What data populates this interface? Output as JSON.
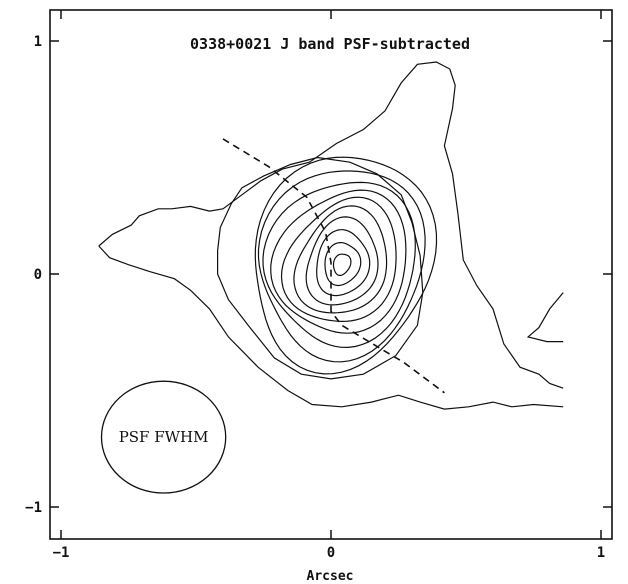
{
  "chart_data": {
    "type": "contour",
    "title": "0338+0021 J band PSF-subtracted",
    "xlabel": "Arcsec",
    "ylabel": "",
    "xlim": [
      -1,
      1
    ],
    "ylim": [
      -1.15,
      1.15
    ],
    "x_ticks": [
      {
        "value": -1,
        "label": "−1"
      },
      {
        "value": 0,
        "label": "0"
      },
      {
        "value": 1,
        "label": "1"
      }
    ],
    "y_ticks": [
      {
        "value": 1,
        "label": "1"
      },
      {
        "value": 0,
        "label": "0"
      },
      {
        "value": -1,
        "label": "−1"
      }
    ],
    "grid": false,
    "inner_contours": {
      "count": 10,
      "center": [
        0.04,
        0.04
      ],
      "rx_range": [
        0.03,
        0.34
      ],
      "ry_range": [
        0.05,
        0.47
      ],
      "rotation_deg": -12
    },
    "outer_contours": [
      [
        [
          -0.86,
          0.12
        ],
        [
          -0.81,
          0.17
        ],
        [
          -0.74,
          0.21
        ],
        [
          -0.71,
          0.25
        ],
        [
          -0.64,
          0.28
        ],
        [
          -0.59,
          0.28
        ],
        [
          -0.52,
          0.29
        ],
        [
          -0.45,
          0.27
        ],
        [
          -0.4,
          0.28
        ],
        [
          -0.33,
          0.34
        ],
        [
          -0.26,
          0.4
        ],
        [
          -0.18,
          0.45
        ],
        [
          -0.08,
          0.48
        ],
        [
          0.02,
          0.56
        ],
        [
          0.12,
          0.62
        ],
        [
          0.2,
          0.7
        ],
        [
          0.26,
          0.82
        ],
        [
          0.32,
          0.9
        ],
        [
          0.39,
          0.91
        ],
        [
          0.44,
          0.88
        ],
        [
          0.46,
          0.81
        ],
        [
          0.45,
          0.71
        ],
        [
          0.42,
          0.55
        ],
        [
          0.45,
          0.43
        ],
        [
          0.47,
          0.26
        ],
        [
          0.49,
          0.06
        ],
        [
          0.54,
          -0.05
        ],
        [
          0.6,
          -0.15
        ],
        [
          0.64,
          -0.3
        ],
        [
          0.7,
          -0.4
        ],
        [
          0.77,
          -0.43
        ],
        [
          0.81,
          -0.47
        ],
        [
          0.86,
          -0.49
        ]
      ],
      [
        [
          -0.86,
          0.12
        ],
        [
          -0.82,
          0.07
        ],
        [
          -0.75,
          0.04
        ],
        [
          -0.67,
          0.01
        ],
        [
          -0.58,
          -0.02
        ],
        [
          -0.52,
          -0.07
        ],
        [
          -0.45,
          -0.15
        ],
        [
          -0.38,
          -0.27
        ],
        [
          -0.27,
          -0.4
        ],
        [
          -0.16,
          -0.5
        ],
        [
          -0.07,
          -0.56
        ],
        [
          0.04,
          -0.57
        ],
        [
          0.15,
          -0.55
        ],
        [
          0.25,
          -0.52
        ],
        [
          0.33,
          -0.55
        ],
        [
          0.42,
          -0.58
        ],
        [
          0.51,
          -0.57
        ],
        [
          0.6,
          -0.55
        ],
        [
          0.67,
          -0.57
        ],
        [
          0.75,
          -0.56
        ],
        [
          0.86,
          -0.57
        ]
      ],
      [
        [
          0.86,
          -0.08
        ],
        [
          0.81,
          -0.15
        ],
        [
          0.77,
          -0.23
        ],
        [
          0.73,
          -0.27
        ],
        [
          0.8,
          -0.29
        ],
        [
          0.86,
          -0.29
        ]
      ]
    ],
    "second_contour": [
      [
        -0.37,
        0.3
      ],
      [
        -0.41,
        0.2
      ],
      [
        -0.42,
        0.1
      ],
      [
        -0.42,
        0.0
      ],
      [
        -0.38,
        -0.11
      ],
      [
        -0.3,
        -0.23
      ],
      [
        -0.21,
        -0.36
      ],
      [
        -0.11,
        -0.43
      ],
      [
        0.0,
        -0.45
      ],
      [
        0.12,
        -0.43
      ],
      [
        0.24,
        -0.35
      ],
      [
        0.32,
        -0.22
      ],
      [
        0.34,
        -0.08
      ],
      [
        0.33,
        0.08
      ],
      [
        0.3,
        0.22
      ],
      [
        0.26,
        0.34
      ],
      [
        0.17,
        0.43
      ],
      [
        0.07,
        0.48
      ],
      [
        -0.05,
        0.5
      ],
      [
        -0.15,
        0.47
      ],
      [
        -0.25,
        0.42
      ],
      [
        -0.33,
        0.37
      ],
      [
        -0.37,
        0.3
      ]
    ],
    "dashed_line": [
      [
        -0.4,
        0.58
      ],
      [
        -0.23,
        0.46
      ],
      [
        -0.09,
        0.33
      ],
      [
        -0.02,
        0.18
      ],
      [
        0.0,
        0.05
      ],
      [
        0.0,
        -0.07
      ],
      [
        0.0,
        -0.16
      ],
      [
        0.04,
        -0.22
      ],
      [
        0.14,
        -0.29
      ],
      [
        0.27,
        -0.38
      ],
      [
        0.42,
        -0.51
      ]
    ],
    "psf_beam": {
      "center": [
        -0.62,
        -0.7
      ],
      "rx": 0.23,
      "ry": 0.24,
      "label": "PSF FWHM"
    }
  }
}
